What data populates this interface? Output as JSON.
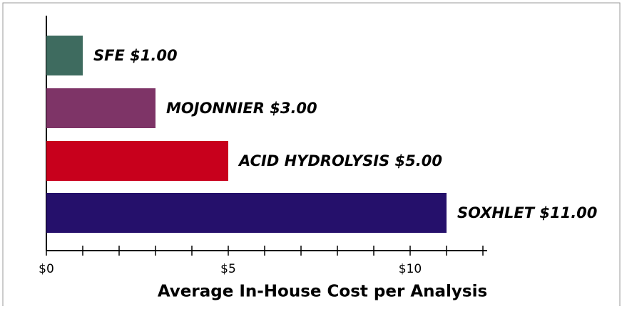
{
  "chart_data": {
    "type": "bar",
    "orientation": "horizontal",
    "xlabel": "Average In-House Cost per Analysis",
    "categories": [
      "SFE",
      "MOJONNIER",
      "ACID HYDROLYSIS",
      "SOXHLET"
    ],
    "values": [
      1,
      3,
      5,
      11
    ],
    "value_labels": [
      "$1.00",
      "$3.00",
      "$5.00",
      "$11.00"
    ],
    "colors": [
      "#3e6b5f",
      "#7e3467",
      "#c8001c",
      "#25106b"
    ],
    "xlim": [
      0,
      12
    ],
    "xticks": [
      {
        "value": 0,
        "label": "$0"
      },
      {
        "value": 5,
        "label": "$5"
      },
      {
        "value": 10,
        "label": "$10"
      }
    ],
    "xminorticks": [
      0,
      1,
      2,
      3,
      4,
      5,
      6,
      7,
      8,
      9,
      10,
      11,
      12
    ]
  }
}
